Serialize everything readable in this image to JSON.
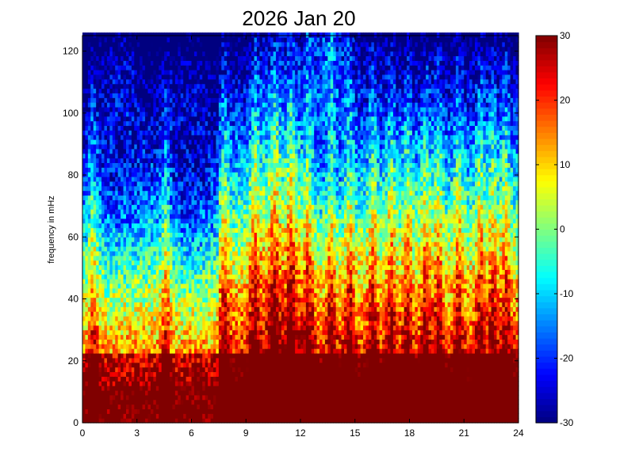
{
  "chart_data": {
    "type": "heatmap",
    "title": "2026 Jan 20",
    "xlabel": "",
    "ylabel": "frequency in mHz",
    "xlim": [
      0,
      24
    ],
    "ylim": [
      0,
      125
    ],
    "x_ticks": [
      "0",
      "3",
      "6",
      "9",
      "12",
      "15",
      "18",
      "21",
      "24"
    ],
    "y_ticks": [
      "0",
      "20",
      "40",
      "60",
      "80",
      "100",
      "120"
    ],
    "colorbar": {
      "range": [
        -30,
        30
      ],
      "ticks": [
        "-30",
        "-20",
        "-10",
        "0",
        "10",
        "20",
        "30"
      ],
      "colormap": "jet"
    },
    "grid": false,
    "x_step_hours": 0.15,
    "y_step_mhz": 1.5,
    "description_model": {
      "base_low_freq_level": 30,
      "bright_bursts_hours": [
        0.6,
        4.6,
        7.8,
        9.4,
        10.6,
        11.5,
        12.5,
        13.7,
        14.7,
        16.0,
        17.0,
        17.9,
        18.9,
        19.6,
        20.7,
        21.9,
        22.6,
        23.3
      ],
      "dark_regions": [
        {
          "x_center_hours": 2.1,
          "y_center_mhz": 100,
          "value": -24
        },
        {
          "x_center_hours": 5.9,
          "y_center_mhz": 95,
          "value": -26
        },
        {
          "x_center_hours": 13.5,
          "y_center_mhz": 110,
          "value": -18
        }
      ]
    }
  }
}
